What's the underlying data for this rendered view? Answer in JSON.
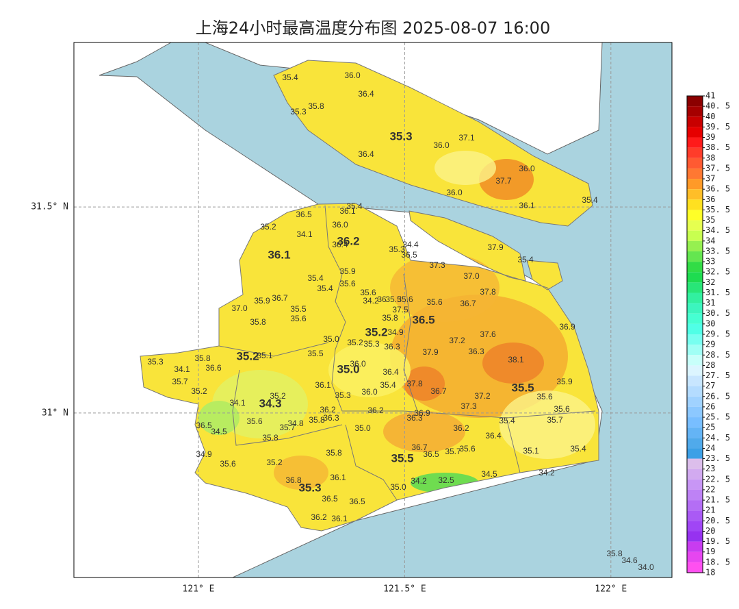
{
  "title": "上海24小时最高温度分布图 2025-08-07 16:00",
  "map": {
    "xlim": [
      120.698,
      122.148
    ],
    "ylim": [
      30.601,
      31.899
    ],
    "grid": true,
    "xticks": [
      {
        "value": 121,
        "label": "121° E"
      },
      {
        "value": 121.5,
        "label": "121.5° E"
      },
      {
        "value": 122,
        "label": "122° E"
      }
    ],
    "yticks": [
      {
        "value": 31,
        "label": "31° N"
      },
      {
        "value": 31.5,
        "label": "31.5° N"
      }
    ]
  },
  "district_values": [
    "35.3",
    "36.2",
    "36.1",
    "36.5",
    "35.2",
    "35.2",
    "35.0",
    "35.5",
    "34.3",
    "35.5",
    "35.3"
  ],
  "station_values": [
    "35.4",
    "36.0",
    "36.4",
    "35.8",
    "35.3",
    "37.1",
    "36.0",
    "36.4",
    "36.0",
    "37.7",
    "36.0",
    "36.1",
    "35.4",
    "37.9",
    "35.4",
    "35.4",
    "36.1",
    "36.5",
    "35.2",
    "36.0",
    "34.1",
    "36.4",
    "35.3",
    "34.4",
    "36.5",
    "37.3",
    "35.9",
    "35.4",
    "37.0",
    "35.6",
    "35.4",
    "37.8",
    "35.6",
    "35.9",
    "36.7",
    "34.2",
    "36",
    "35.5",
    "35.6",
    "35.6",
    "36.7",
    "37.0",
    "35.5",
    "37.5",
    "35.6",
    "35.8",
    "35.8",
    "36.9",
    "34.9",
    "35.0",
    "37.2",
    "37.6",
    "35.2",
    "35.3",
    "36.3",
    "37.9",
    "36.3",
    "35.5",
    "35.1",
    "38.1",
    "35.3",
    "35.8",
    "36.0",
    "34.1",
    "36.6",
    "36.4",
    "35.7",
    "37.8",
    "35.9",
    "36.1",
    "35.4",
    "35.2",
    "36.7",
    "36.0",
    "35.3",
    "37.2",
    "35.6",
    "35.2",
    "34.1",
    "37.3",
    "36.2",
    "36.2",
    "35.6",
    "36.9",
    "36.3",
    "35.8",
    "36.3",
    "35.6",
    "34.8",
    "35.4",
    "35.7",
    "36.5",
    "35.7",
    "35.0",
    "36.2",
    "34.5",
    "36.4",
    "35.8",
    "36.7",
    "35.6",
    "35.7",
    "35.8",
    "36.5",
    "34.9",
    "35.1",
    "35.4",
    "35.2",
    "35.6",
    "34.5",
    "34.2",
    "36.8",
    "36.1",
    "34.2",
    "32.5",
    "35.0",
    "36.5",
    "36.5",
    "36.2",
    "36.1",
    "35.8",
    "34.6",
    "34.0"
  ],
  "colorbar": {
    "ticks": [
      41,
      {
        "value": 40.5,
        "label": "40. 5"
      },
      40,
      {
        "value": 39.5,
        "label": "39. 5"
      },
      39,
      {
        "value": 38.5,
        "label": "38. 5"
      },
      38,
      {
        "value": 37.5,
        "label": "37. 5"
      },
      37,
      {
        "value": 36.5,
        "label": "36. 5"
      },
      36,
      {
        "value": 35.5,
        "label": "35. 5"
      },
      35,
      {
        "value": 34.5,
        "label": "34. 5"
      },
      34,
      {
        "value": 33.5,
        "label": "33. 5"
      },
      33,
      {
        "value": 32.5,
        "label": "32. 5"
      },
      32,
      {
        "value": 31.5,
        "label": "31. 5"
      },
      31,
      {
        "value": 30.5,
        "label": "30. 5"
      },
      30,
      {
        "value": 29.5,
        "label": "29. 5"
      },
      29,
      {
        "value": 28.5,
        "label": "28. 5"
      },
      28,
      {
        "value": 27.5,
        "label": "27. 5"
      },
      27,
      {
        "value": 26.5,
        "label": "26. 5"
      },
      26,
      {
        "value": 25.5,
        "label": "25. 5"
      },
      25,
      {
        "value": 24.5,
        "label": "24. 5"
      },
      24,
      {
        "value": 23.5,
        "label": "23. 5"
      },
      23,
      {
        "value": 22.5,
        "label": "22. 5"
      },
      22,
      {
        "value": 21.5,
        "label": "21. 5"
      },
      21,
      {
        "value": 20.5,
        "label": "20. 5"
      },
      20,
      {
        "value": 19.5,
        "label": "19. 5"
      },
      19,
      {
        "value": 18.5,
        "label": "18. 5"
      },
      18
    ],
    "colors": [
      "#8b0000",
      "#a50000",
      "#c80000",
      "#e60000",
      "#ff1a1a",
      "#ff3c2a",
      "#ff5a32",
      "#ff7832",
      "#ff9a28",
      "#ffbe28",
      "#ffe020",
      "#ffff28",
      "#e6ff50",
      "#c8ff50",
      "#96f050",
      "#64e650",
      "#32dc46",
      "#1edc50",
      "#28e678",
      "#32f0a0",
      "#3cf5be",
      "#46ffd2",
      "#50ffe6",
      "#78fff0",
      "#a0fff5",
      "#c8fffa",
      "#dcf5ff",
      "#c8e6ff",
      "#b4dcff",
      "#a0d2ff",
      "#8cc8ff",
      "#78beff",
      "#64b4f5",
      "#50aaeb",
      "#3ca0e6",
      "#dcbeeb",
      "#d2aaf0",
      "#c896f5",
      "#be82f5",
      "#b46ef5",
      "#aa5af5",
      "#a046f5",
      "#9632f0",
      "#c83cf0",
      "#e646f0",
      "#ff50f0"
    ]
  }
}
